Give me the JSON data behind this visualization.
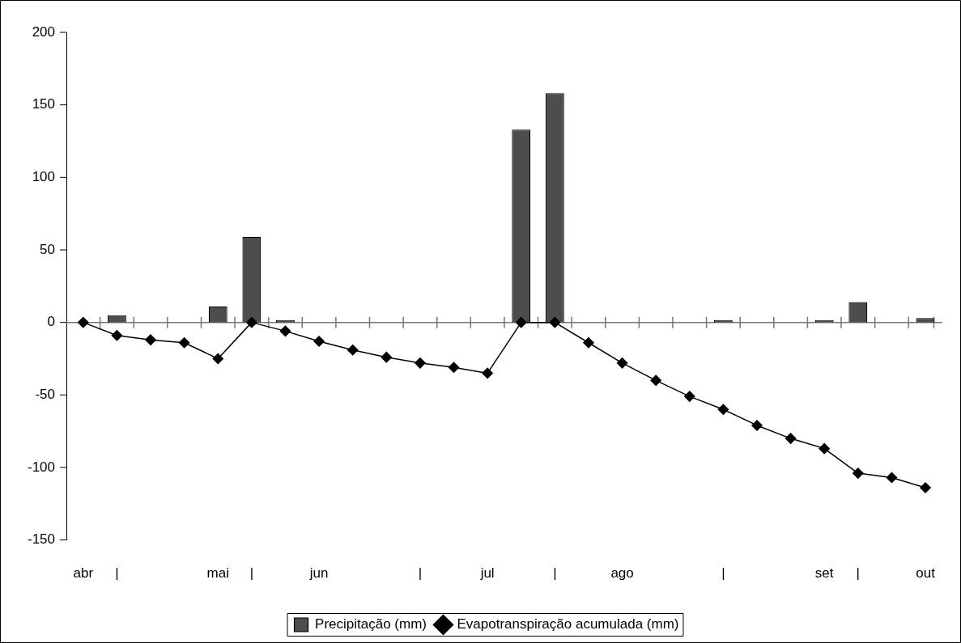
{
  "chart_data": {
    "type": "bar",
    "categories": [
      "abr",
      "|",
      null,
      null,
      "mai",
      "|",
      null,
      "jun",
      null,
      null,
      "|",
      null,
      "jul",
      null,
      "|",
      null,
      "ago",
      null,
      null,
      "|",
      null,
      null,
      "set",
      "|",
      null,
      "out"
    ],
    "series": [
      {
        "name": "Precipitação (mm)",
        "color": "#4d4d4d",
        "values": [
          null,
          5,
          null,
          null,
          11,
          59,
          1,
          null,
          null,
          null,
          null,
          null,
          null,
          133,
          158,
          null,
          null,
          null,
          null,
          1,
          null,
          null,
          1,
          14,
          null,
          3
        ]
      },
      {
        "name": "Evapotranspiração acumulada (mm)",
        "type": "line",
        "color": "#000000",
        "values": [
          0,
          -9,
          -12,
          -14,
          -25,
          0,
          -6,
          -13,
          -19,
          -24,
          -28,
          -31,
          -35,
          0,
          0,
          -14,
          -28,
          -40,
          -51,
          -60,
          -71,
          -80,
          -87,
          -104,
          -107,
          -114
        ]
      }
    ],
    "ylim": [
      -150,
      200
    ],
    "yticks": [
      -150,
      -100,
      -50,
      0,
      50,
      100,
      150,
      200
    ],
    "legend": "bottom",
    "marker": "diamond",
    "line_style": "solid"
  }
}
